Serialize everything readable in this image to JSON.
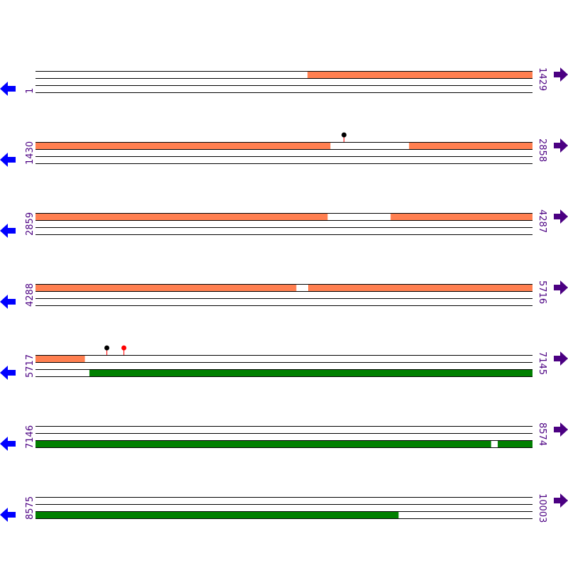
{
  "colors": {
    "forward_feature": "#ff7f50",
    "reverse_feature": "#008000",
    "label": "#4b0082",
    "left_arrow": "#0000ff",
    "right_arrow": "#4b0082",
    "line": "#000000",
    "marker_black": "#000000",
    "marker_red": "#ff0000",
    "stem": "#ff0000"
  },
  "bp_per_row": 1429,
  "rows": [
    {
      "start": "1",
      "end": "1429",
      "s": 1,
      "features": [
        {
          "track": 0,
          "from": 783,
          "to": 1429
        }
      ],
      "markers": []
    },
    {
      "start": "1430",
      "end": "2858",
      "s": 1430,
      "features": [
        {
          "track": 0,
          "from": 1430,
          "to": 2277
        },
        {
          "track": 0,
          "from": 2504,
          "to": 2858
        }
      ],
      "markers": [
        {
          "pos": 2316,
          "color": "black"
        }
      ]
    },
    {
      "start": "2859",
      "end": "4287",
      "s": 2859,
      "features": [
        {
          "track": 0,
          "from": 2859,
          "to": 3698
        },
        {
          "track": 0,
          "from": 3880,
          "to": 4287
        }
      ],
      "markers": []
    },
    {
      "start": "4288",
      "end": "5716",
      "s": 4288,
      "features": [
        {
          "track": 0,
          "from": 4288,
          "to": 5037
        },
        {
          "track": 0,
          "from": 5072,
          "to": 5716
        }
      ],
      "markers": []
    },
    {
      "start": "5717",
      "end": "7145",
      "s": 5717,
      "features": [
        {
          "track": 0,
          "from": 5717,
          "to": 5858
        },
        {
          "track": 2,
          "from": 5872,
          "to": 7145
        }
      ],
      "markers": [
        {
          "pos": 5921,
          "color": "black"
        },
        {
          "pos": 5970,
          "color": "red"
        }
      ]
    },
    {
      "start": "7146",
      "end": "8574",
      "s": 7146,
      "features": [
        {
          "track": 2,
          "from": 7146,
          "to": 8455
        },
        {
          "track": 2,
          "from": 8475,
          "to": 8574
        }
      ],
      "markers": []
    },
    {
      "start": "8575",
      "end": "10003",
      "s": 8575,
      "features": [
        {
          "track": 2,
          "from": 8575,
          "to": 9618
        }
      ],
      "markers": []
    }
  ]
}
